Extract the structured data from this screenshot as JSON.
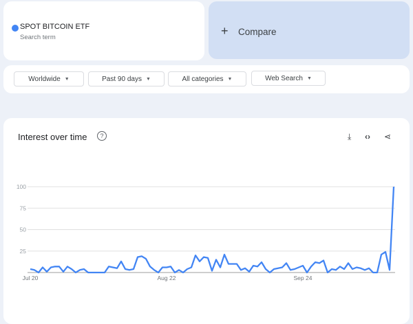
{
  "search_term": {
    "label": "SPOT BITCOIN ETF",
    "sublabel": "Search term",
    "color": "#4285f4"
  },
  "compare": {
    "icon": "plus-icon",
    "label": "Compare"
  },
  "filters": [
    {
      "label": "Worldwide"
    },
    {
      "label": "Past 90 days"
    },
    {
      "label": "All categories"
    },
    {
      "label": "Web Search"
    }
  ],
  "panel": {
    "title": "Interest over time",
    "actions": [
      "download-icon",
      "embed-code-icon",
      "share-icon"
    ]
  },
  "chart_data": {
    "type": "line",
    "title": "",
    "xlabel": "",
    "ylabel": "",
    "ylim": [
      0,
      100
    ],
    "yticks": [
      0,
      25,
      50,
      75,
      100
    ],
    "ytick_labels": [
      "",
      "25",
      "50",
      "75",
      "100"
    ],
    "x_start": "Jul 20",
    "xtick_labels": [
      {
        "label": "Jul 20",
        "index": 0
      },
      {
        "label": "Aug 22",
        "index": 33
      },
      {
        "label": "Sep 24",
        "index": 66
      }
    ],
    "grid": true,
    "color": "#4285f4",
    "series": [
      {
        "values": [
          4,
          3,
          0,
          6,
          1,
          6,
          7,
          7,
          1,
          7,
          4,
          0,
          3,
          4,
          0,
          0,
          0,
          0,
          0,
          7,
          6,
          5,
          13,
          4,
          3,
          4,
          18,
          19,
          16,
          7,
          3,
          0,
          6,
          6,
          7,
          0,
          3,
          0,
          4,
          6,
          20,
          13,
          18,
          17,
          2,
          15,
          6,
          21,
          10,
          10,
          10,
          3,
          5,
          1,
          8,
          7,
          12,
          4,
          0,
          4,
          5,
          6,
          11,
          3,
          4,
          6,
          8,
          0,
          7,
          12,
          11,
          14,
          0,
          4,
          3,
          7,
          4,
          11,
          4,
          6,
          5,
          3,
          5,
          0,
          0,
          21,
          24,
          3,
          100
        ]
      }
    ]
  }
}
